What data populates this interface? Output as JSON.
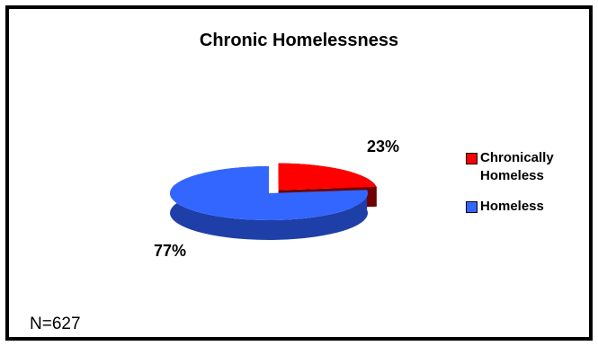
{
  "chart_data": {
    "type": "pie",
    "title": "Chronic Homelessness",
    "slices": [
      {
        "name": "Chronically Homeless",
        "value": 23,
        "label": "23%",
        "color": "#ff0000",
        "side_color": "#6e0000"
      },
      {
        "name": "Homeless",
        "value": 77,
        "label": "77%",
        "color": "#3366ff",
        "side_color": "#1f3fa8"
      }
    ],
    "three_d": true,
    "exploded_slice": "Chronically Homeless",
    "legend_position": "right",
    "note": "N=627"
  }
}
